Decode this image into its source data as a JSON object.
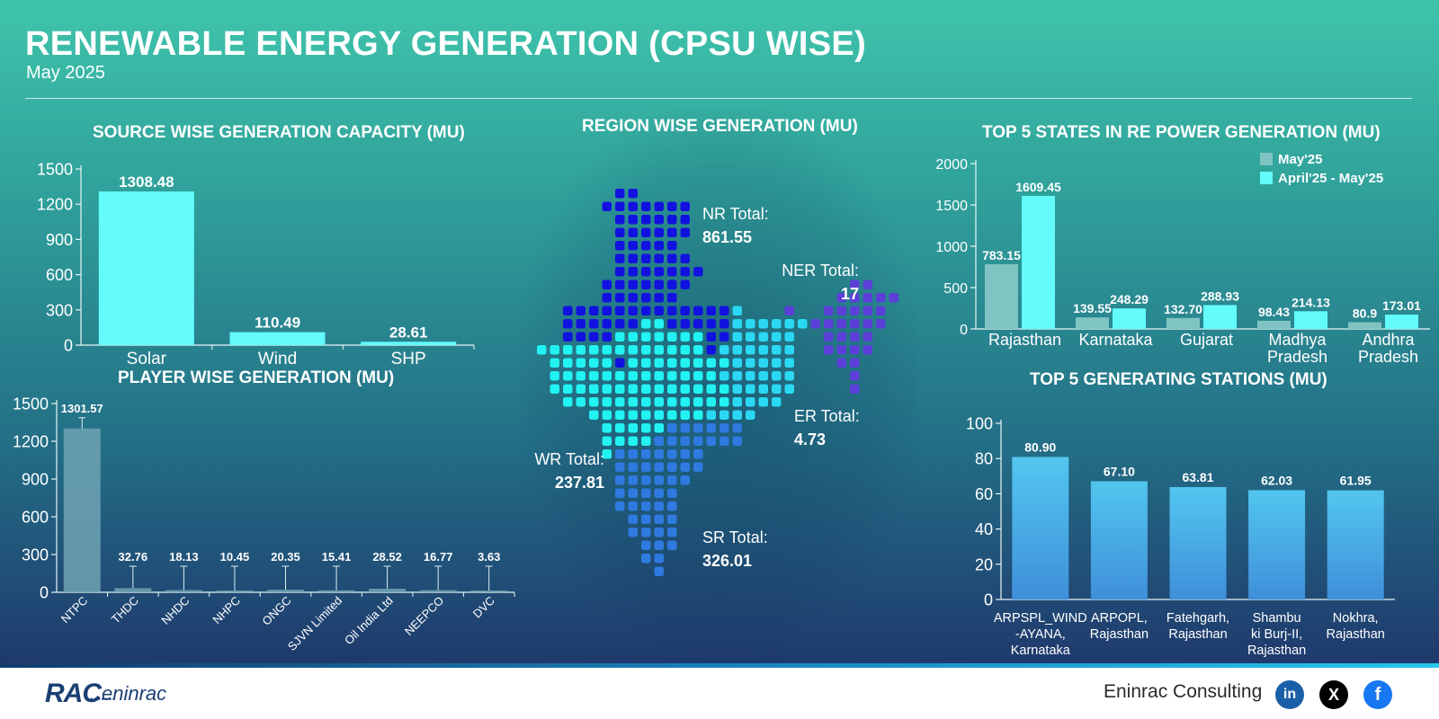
{
  "header": {
    "title": "RENEWABLE ENERGY GENERATION (CPSU WISE)",
    "subtitle": "May 2025"
  },
  "sections": {
    "source": "SOURCE WISE GENERATION CAPACITY (MU)",
    "player": "PLAYER WISE GENERATION (MU)",
    "region": "REGION WISE GENERATION (MU)",
    "states": "TOP 5 STATES IN RE POWER GENERATION (MU)",
    "stations": "TOP 5 GENERATING STATIONS (MU)"
  },
  "colors": {
    "cyan_bar": "#63fbfb",
    "state_may": "#7fc4c2",
    "state_apr": "#63fbfb",
    "player_bar": "#6fa3b3",
    "station_top": "#52c6ef",
    "station_bottom": "#3f8fd9",
    "nr": "#1212e0",
    "wr": "#22f2f2",
    "sr": "#2f7ae0",
    "er": "#2bd8f4",
    "ner": "#5b3fd8"
  },
  "chart_data": [
    {
      "id": "source",
      "type": "bar",
      "title": "SOURCE WISE GENERATION CAPACITY (MU)",
      "categories": [
        "Solar",
        "Wind",
        "SHP"
      ],
      "values": [
        1308.48,
        110.49,
        28.61
      ],
      "value_labels": [
        "1308.48",
        "110.49",
        "28.61"
      ],
      "ylim": [
        0,
        1500
      ],
      "yticks": [
        0,
        300,
        600,
        900,
        1200,
        1500
      ]
    },
    {
      "id": "player",
      "type": "bar",
      "title": "PLAYER WISE GENERATION (MU)",
      "categories": [
        "NTPC",
        "THDC",
        "NHDC",
        "NHPC",
        "ONGC",
        "SJVN Limited",
        "Oil India Ltd",
        "NEEPCO",
        "DVC"
      ],
      "values": [
        1301.57,
        32.76,
        18.13,
        10.45,
        20.35,
        15.41,
        28.52,
        16.77,
        3.63
      ],
      "value_labels": [
        "1301.57",
        "32.76",
        "18.13",
        "10.45",
        "20.35",
        "15.41",
        "28.52",
        "16.77",
        "3.63"
      ],
      "ylim": [
        0,
        1500
      ],
      "yticks": [
        0,
        300,
        600,
        900,
        1200,
        1500
      ]
    },
    {
      "id": "region",
      "type": "table",
      "title": "REGION WISE GENERATION (MU)",
      "regions": [
        {
          "name": "NR Total:",
          "value": "861.55"
        },
        {
          "name": "NER Total:",
          "value": "17"
        },
        {
          "name": "ER Total:",
          "value": "4.73"
        },
        {
          "name": "WR Total:",
          "value": "237.81"
        },
        {
          "name": "SR Total:",
          "value": "326.01"
        }
      ]
    },
    {
      "id": "states",
      "type": "bar",
      "title": "TOP 5 STATES IN RE POWER GENERATION (MU)",
      "categories": [
        "Rajasthan",
        "Karnataka",
        "Gujarat",
        "Madhya Pradesh",
        "Andhra Pradesh"
      ],
      "category_lines": [
        [
          "Rajasthan"
        ],
        [
          "Karnataka"
        ],
        [
          "Gujarat"
        ],
        [
          "Madhya",
          "Pradesh"
        ],
        [
          "Andhra",
          "Pradesh"
        ]
      ],
      "series": [
        {
          "name": "May'25",
          "values": [
            783.15,
            139.55,
            132.7,
            98.43,
            80.9
          ],
          "labels": [
            "783.15",
            "139.55",
            "132.70",
            "98.43",
            "80.9"
          ]
        },
        {
          "name": "April'25 - May'25",
          "values": [
            1609.45,
            248.29,
            288.93,
            214.13,
            173.01
          ],
          "labels": [
            "1609.45",
            "248.29",
            "288.93",
            "214.13",
            "173.01"
          ]
        }
      ],
      "legend": "top-right",
      "ylim": [
        0,
        2000
      ],
      "yticks": [
        0,
        500,
        1000,
        1500,
        2000
      ]
    },
    {
      "id": "stations",
      "type": "bar",
      "title": "TOP 5 GENERATING STATIONS (MU)",
      "categories": [
        "ARPSPL_WIND -AYANA, Karnataka",
        "ARPOPL, Rajasthan",
        "Fatehgarh, Rajasthan",
        "Shambu ki Burj-II, Rajasthan",
        "Nokhra, Rajasthan"
      ],
      "category_lines": [
        [
          "ARPSPL_WIND",
          "-AYANA,",
          "Karnataka"
        ],
        [
          "ARPOPL,",
          "Rajasthan"
        ],
        [
          "Fatehgarh,",
          "Rajasthan"
        ],
        [
          "Shambu",
          "ki Burj-II,",
          "Rajasthan"
        ],
        [
          "Nokhra,",
          "Rajasthan"
        ]
      ],
      "values": [
        80.9,
        67.1,
        63.81,
        62.03,
        61.95
      ],
      "value_labels": [
        "80.90",
        "67.10",
        "63.81",
        "62.03",
        "61.95"
      ],
      "ylim": [
        0,
        100
      ],
      "yticks": [
        0,
        20,
        40,
        60,
        80,
        100
      ]
    }
  ],
  "footer": {
    "logo_main": "RAC",
    "logo_sub": "eninrac",
    "logo_dots": "••••••••",
    "company": "Eninrac Consulting",
    "linkedin": "in",
    "x": "X",
    "facebook": "f"
  }
}
